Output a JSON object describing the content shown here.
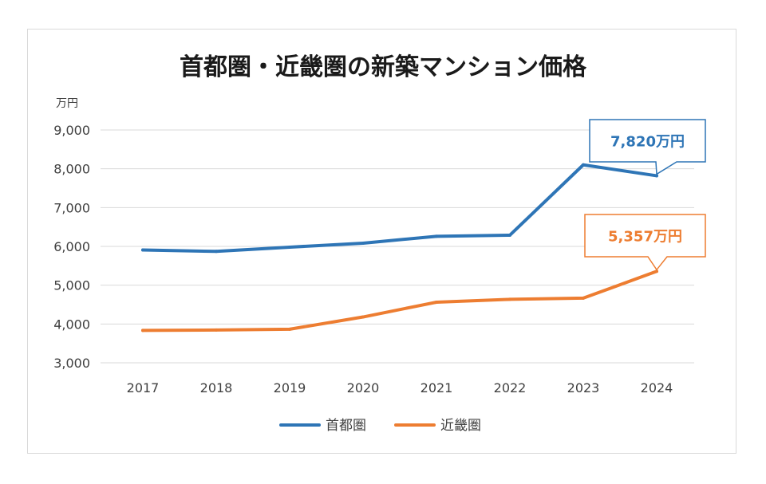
{
  "chart_data": {
    "type": "line",
    "title": "首都圏・近畿圏の新築マンション価格",
    "ylabel": "万円",
    "xlabel": "",
    "categories": [
      "2017",
      "2018",
      "2019",
      "2020",
      "2021",
      "2022",
      "2023",
      "2024"
    ],
    "ylim": [
      3000,
      9000
    ],
    "yticks": [
      3000,
      4000,
      5000,
      6000,
      7000,
      8000,
      9000
    ],
    "ytick_labels": [
      "3,000",
      "4,000",
      "5,000",
      "6,000",
      "7,000",
      "8,000",
      "9,000"
    ],
    "grid": true,
    "legend": "bottom",
    "series": [
      {
        "name": "首都圏",
        "color": "#2e75b6",
        "values": [
          5908,
          5871,
          5980,
          6083,
          6260,
          6288,
          8101,
          7820
        ]
      },
      {
        "name": "近畿圏",
        "color": "#ed7d31",
        "values": [
          3836,
          3844,
          3866,
          4181,
          4562,
          4635,
          4666,
          5357
        ]
      }
    ],
    "annotations": [
      {
        "series": 0,
        "label": "7,820万円",
        "color": "#2e75b6"
      },
      {
        "series": 1,
        "label": "5,357万円",
        "color": "#ed7d31"
      }
    ]
  }
}
